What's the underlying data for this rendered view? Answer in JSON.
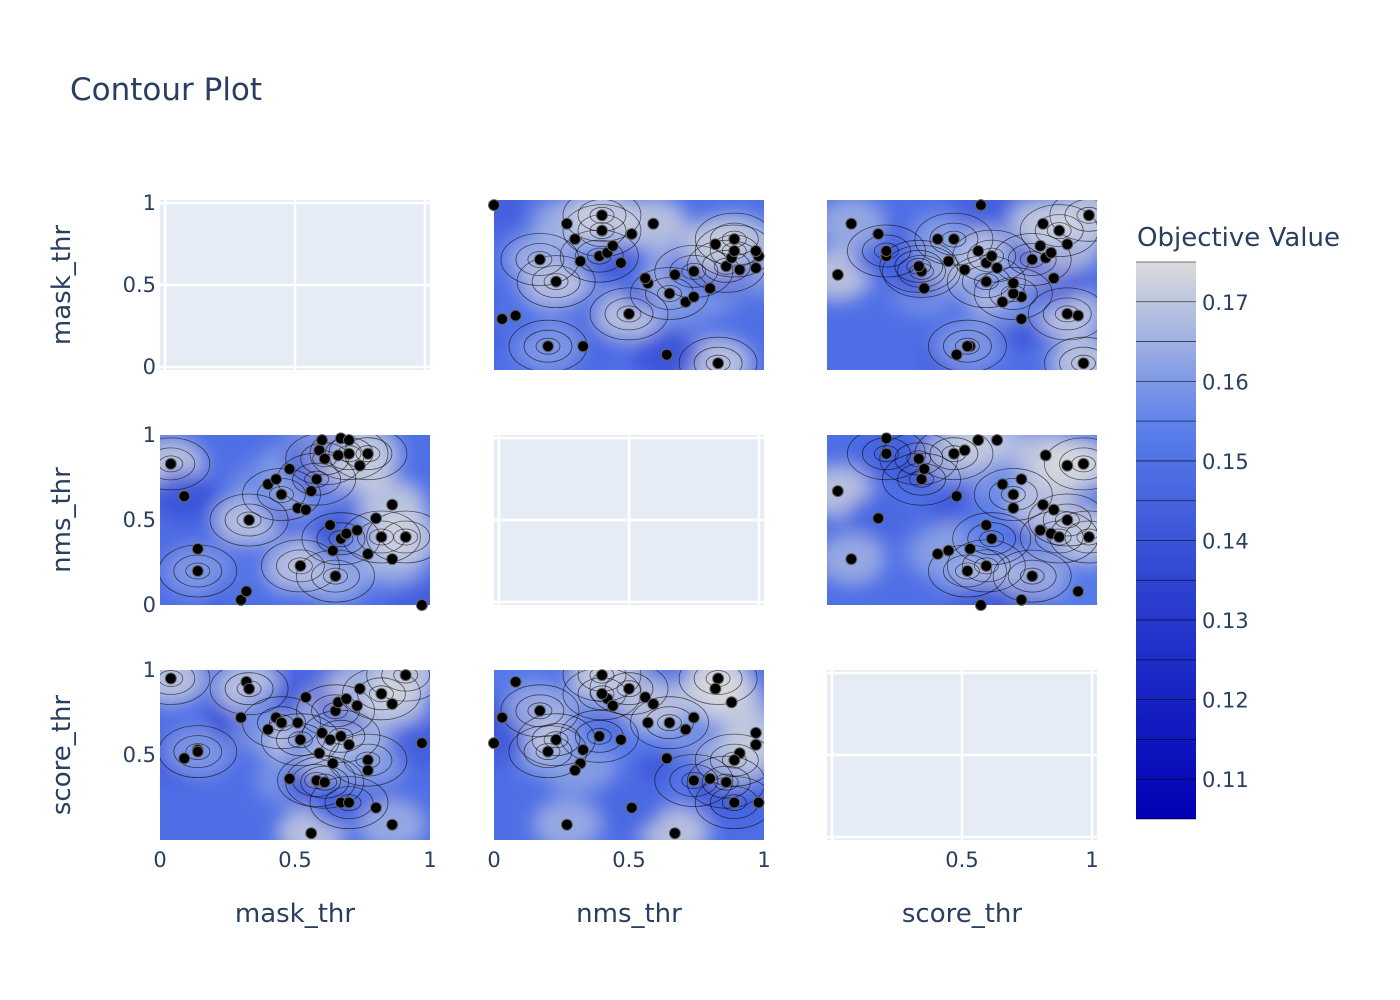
{
  "chart_data": {
    "type": "contour",
    "title": "Contour Plot",
    "params": [
      "mask_thr",
      "nms_thr",
      "score_thr"
    ],
    "row_labels": [
      "mask_thr",
      "nms_thr",
      "score_thr"
    ],
    "col_labels": [
      "mask_thr",
      "nms_thr",
      "score_thr"
    ],
    "colorbar": {
      "title": "Objective Value",
      "range": [
        0.105,
        0.175
      ],
      "ticks": [
        0.11,
        0.12,
        0.13,
        0.14,
        0.15,
        0.16,
        0.17
      ],
      "tick_labels": [
        "0.11",
        "0.12",
        "0.13",
        "0.14",
        "0.15",
        "0.16",
        "0.17"
      ],
      "colorscale": [
        "#0000b4",
        "#3e65e0",
        "#dcdcdc"
      ]
    },
    "axes": {
      "mask_thr": {
        "range": [
          0.0,
          1.0
        ],
        "ticks": [
          0,
          0.5,
          1
        ],
        "tick_labels": [
          "0",
          "0.5",
          "1"
        ]
      },
      "nms_thr": {
        "range": [
          0.0,
          1.0
        ],
        "ticks": [
          0,
          0.5,
          1
        ],
        "tick_labels": [
          "0",
          "0.5",
          "1"
        ]
      },
      "score_thr": {
        "range": [
          0.0,
          1.0
        ],
        "ticks": [
          0.5,
          1
        ],
        "tick_labels": [
          "0.5",
          "1"
        ]
      }
    },
    "grid": true,
    "trials": [
      {
        "mask_thr": 0.04,
        "nms_thr": 0.83,
        "score_thr": 0.95
      },
      {
        "mask_thr": 0.09,
        "nms_thr": 0.64,
        "score_thr": 0.48
      },
      {
        "mask_thr": 0.14,
        "nms_thr": 0.33,
        "score_thr": 0.53
      },
      {
        "mask_thr": 0.14,
        "nms_thr": 0.2,
        "score_thr": 0.52
      },
      {
        "mask_thr": 0.3,
        "nms_thr": 0.03,
        "score_thr": 0.72
      },
      {
        "mask_thr": 0.32,
        "nms_thr": 0.08,
        "score_thr": 0.93
      },
      {
        "mask_thr": 0.33,
        "nms_thr": 0.5,
        "score_thr": 0.89
      },
      {
        "mask_thr": 0.4,
        "nms_thr": 0.71,
        "score_thr": 0.65
      },
      {
        "mask_thr": 0.43,
        "nms_thr": 0.74,
        "score_thr": 0.72
      },
      {
        "mask_thr": 0.45,
        "nms_thr": 0.65,
        "score_thr": 0.69
      },
      {
        "mask_thr": 0.48,
        "nms_thr": 0.8,
        "score_thr": 0.36
      },
      {
        "mask_thr": 0.51,
        "nms_thr": 0.57,
        "score_thr": 0.69
      },
      {
        "mask_thr": 0.52,
        "nms_thr": 0.23,
        "score_thr": 0.59
      },
      {
        "mask_thr": 0.54,
        "nms_thr": 0.56,
        "score_thr": 0.84
      },
      {
        "mask_thr": 0.56,
        "nms_thr": 0.67,
        "score_thr": 0.04
      },
      {
        "mask_thr": 0.58,
        "nms_thr": 0.74,
        "score_thr": 0.35
      },
      {
        "mask_thr": 0.59,
        "nms_thr": 0.91,
        "score_thr": 0.51
      },
      {
        "mask_thr": 0.6,
        "nms_thr": 0.97,
        "score_thr": 0.63
      },
      {
        "mask_thr": 0.61,
        "nms_thr": 0.86,
        "score_thr": 0.34
      },
      {
        "mask_thr": 0.63,
        "nms_thr": 0.47,
        "score_thr": 0.59
      },
      {
        "mask_thr": 0.64,
        "nms_thr": 0.32,
        "score_thr": 0.45
      },
      {
        "mask_thr": 0.65,
        "nms_thr": 0.17,
        "score_thr": 0.76
      },
      {
        "mask_thr": 0.66,
        "nms_thr": 0.88,
        "score_thr": 0.81
      },
      {
        "mask_thr": 0.67,
        "nms_thr": 0.98,
        "score_thr": 0.22
      },
      {
        "mask_thr": 0.67,
        "nms_thr": 0.39,
        "score_thr": 0.61
      },
      {
        "mask_thr": 0.69,
        "nms_thr": 0.42,
        "score_thr": 0.83
      },
      {
        "mask_thr": 0.7,
        "nms_thr": 0.97,
        "score_thr": 0.56
      },
      {
        "mask_thr": 0.7,
        "nms_thr": 0.89,
        "score_thr": 0.22
      },
      {
        "mask_thr": 0.73,
        "nms_thr": 0.44,
        "score_thr": 0.79
      },
      {
        "mask_thr": 0.74,
        "nms_thr": 0.82,
        "score_thr": 0.89
      },
      {
        "mask_thr": 0.77,
        "nms_thr": 0.89,
        "score_thr": 0.47
      },
      {
        "mask_thr": 0.77,
        "nms_thr": 0.3,
        "score_thr": 0.41
      },
      {
        "mask_thr": 0.8,
        "nms_thr": 0.51,
        "score_thr": 0.19
      },
      {
        "mask_thr": 0.82,
        "nms_thr": 0.4,
        "score_thr": 0.86
      },
      {
        "mask_thr": 0.86,
        "nms_thr": 0.27,
        "score_thr": 0.09
      },
      {
        "mask_thr": 0.86,
        "nms_thr": 0.59,
        "score_thr": 0.8
      },
      {
        "mask_thr": 0.91,
        "nms_thr": 0.4,
        "score_thr": 0.97
      },
      {
        "mask_thr": 0.97,
        "nms_thr": 0.0,
        "score_thr": 0.57
      }
    ]
  }
}
